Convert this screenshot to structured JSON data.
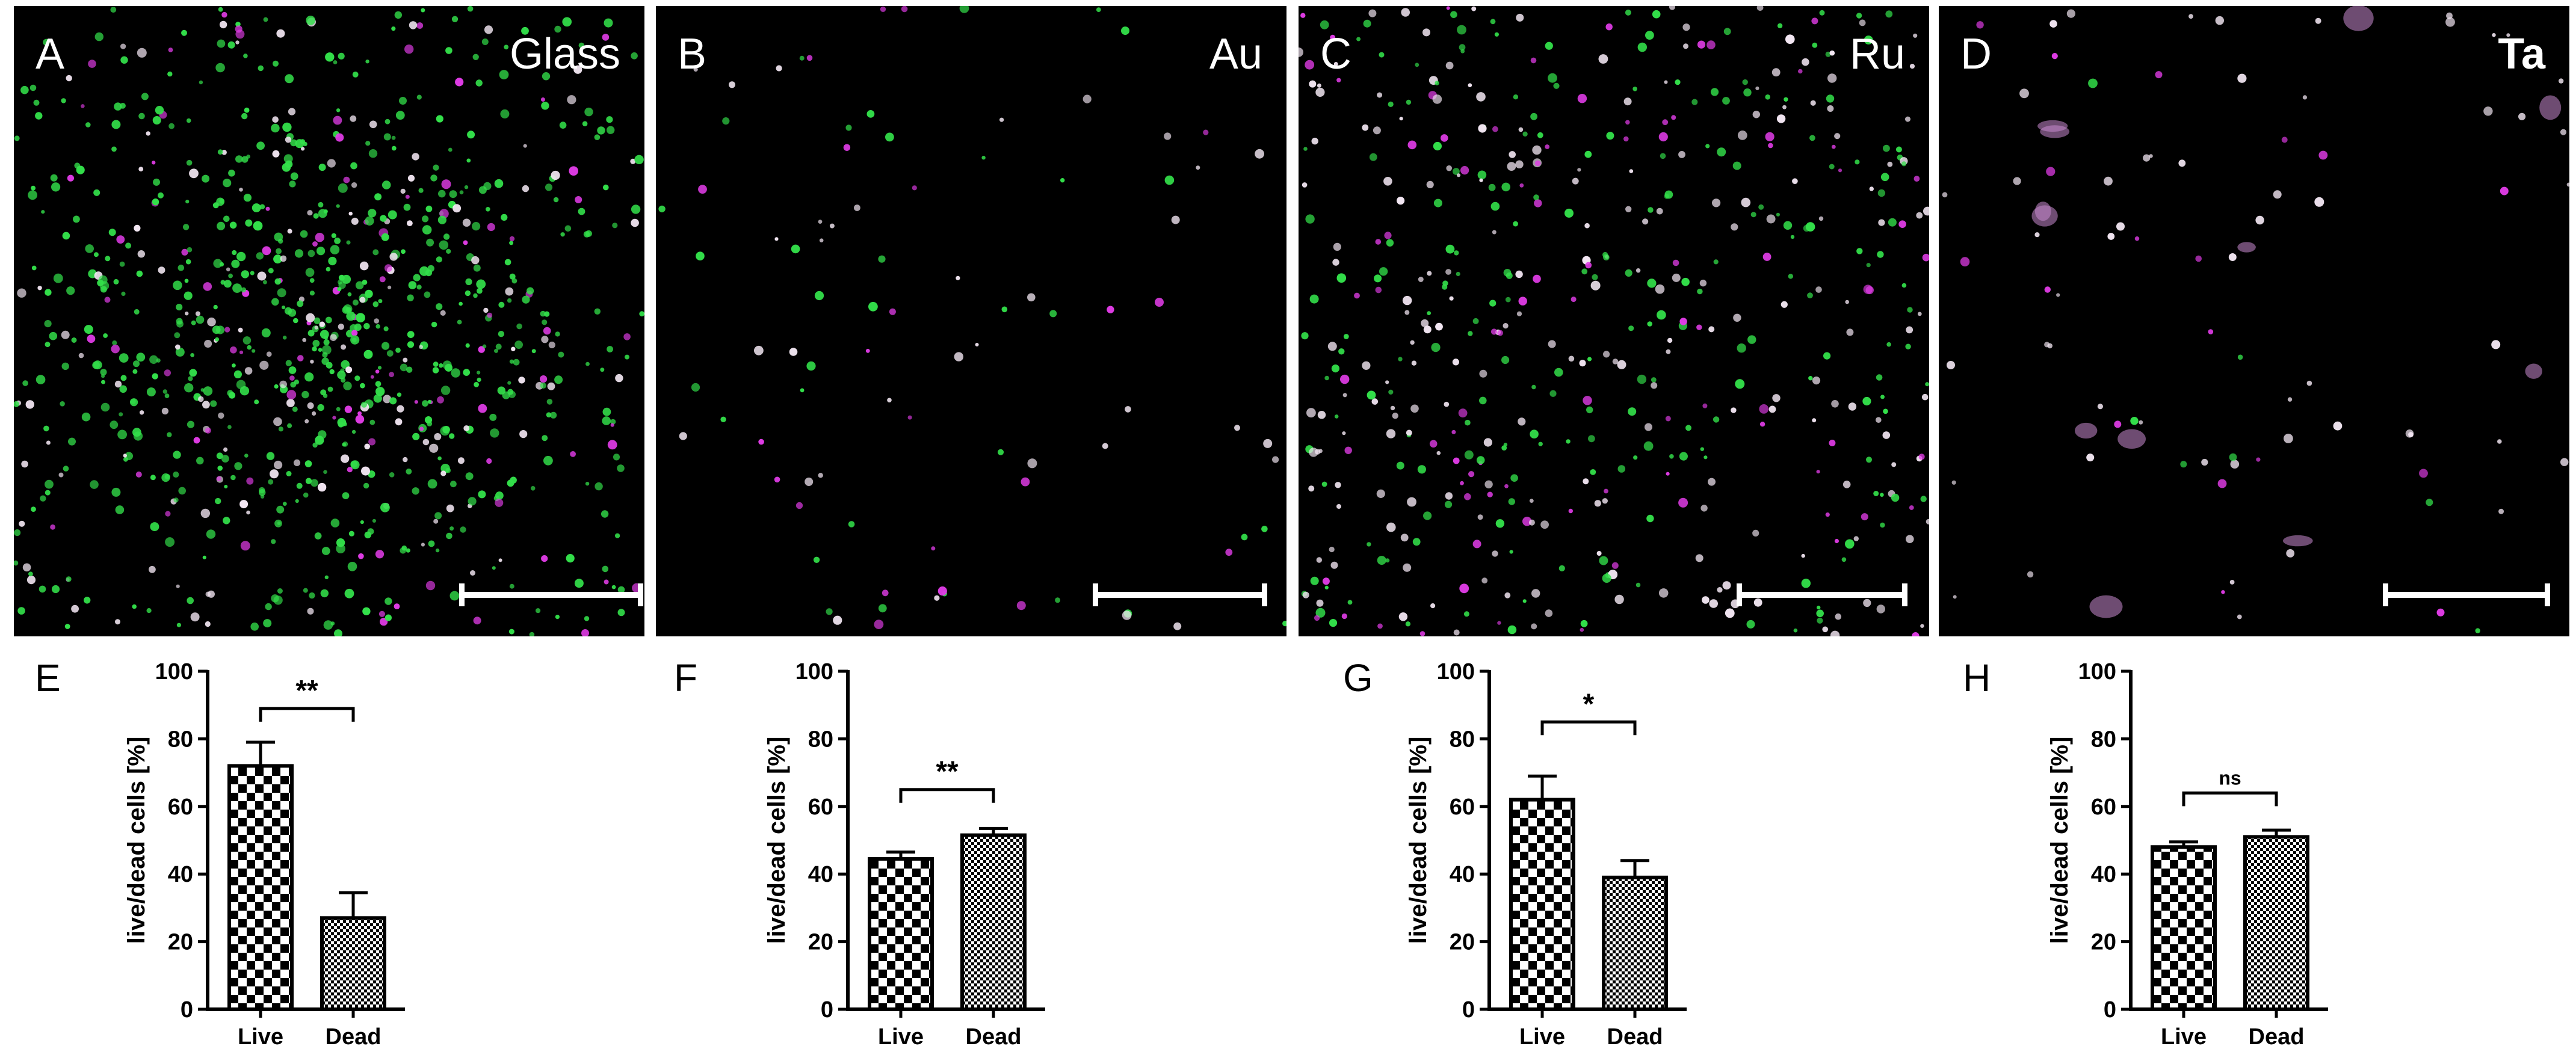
{
  "panels": [
    {
      "letter": "A",
      "label": "Glass",
      "label_bold": false,
      "density": 900,
      "green": 0.72,
      "magenta": 0.1,
      "white": 0.18,
      "cluster": true,
      "blobs": false
    },
    {
      "letter": "B",
      "label": "Au",
      "label_bold": false,
      "density": 90,
      "green": 0.35,
      "magenta": 0.2,
      "white": 0.45,
      "cluster": false,
      "blobs": false
    },
    {
      "letter": "C",
      "label": "Ru",
      "label_bold": false,
      "density": 520,
      "green": 0.45,
      "magenta": 0.15,
      "white": 0.4,
      "cluster": false,
      "blobs": false
    },
    {
      "letter": "D",
      "label": "Ta",
      "label_bold": true,
      "density": 80,
      "green": 0.1,
      "magenta": 0.3,
      "white": 0.6,
      "cluster": false,
      "blobs": true
    }
  ],
  "colors": {
    "green": "#33e04a",
    "magenta": "#e03ce6",
    "white": "#f2e6f2",
    "bar_fill_a": "#ffffff",
    "bar_fill_b": "#000000"
  },
  "chart_data": [
    {
      "panel": "E",
      "type": "bar",
      "categories": [
        "Live",
        "Dead"
      ],
      "values": [
        72,
        27
      ],
      "errors": [
        7,
        7.5
      ],
      "ylabel": "live/dead cells [%]",
      "ylim": [
        0,
        100
      ],
      "yticks": [
        0,
        20,
        40,
        60,
        80,
        100
      ],
      "significance": "**",
      "bracket_y": 89
    },
    {
      "panel": "F",
      "type": "bar",
      "categories": [
        "Live",
        "Dead"
      ],
      "values": [
        44.5,
        51.5
      ],
      "errors": [
        2,
        2
      ],
      "ylabel": "live/dead cells [%]",
      "ylim": [
        0,
        100
      ],
      "yticks": [
        0,
        20,
        40,
        60,
        80,
        100
      ],
      "significance": "**",
      "bracket_y": 65
    },
    {
      "panel": "G",
      "type": "bar",
      "categories": [
        "Live",
        "Dead"
      ],
      "values": [
        62,
        39
      ],
      "errors": [
        7,
        5
      ],
      "ylabel": "live/dead cells [%]",
      "ylim": [
        0,
        100
      ],
      "yticks": [
        0,
        20,
        40,
        60,
        80,
        100
      ],
      "significance": "*",
      "bracket_y": 85
    },
    {
      "panel": "H",
      "type": "bar",
      "categories": [
        "Live",
        "Dead"
      ],
      "values": [
        48,
        51
      ],
      "errors": [
        1.5,
        2
      ],
      "ylabel": "live/dead cells [%]",
      "ylim": [
        0,
        100
      ],
      "yticks": [
        0,
        20,
        40,
        60,
        80,
        100
      ],
      "significance": "ns",
      "bracket_y": 64
    }
  ]
}
